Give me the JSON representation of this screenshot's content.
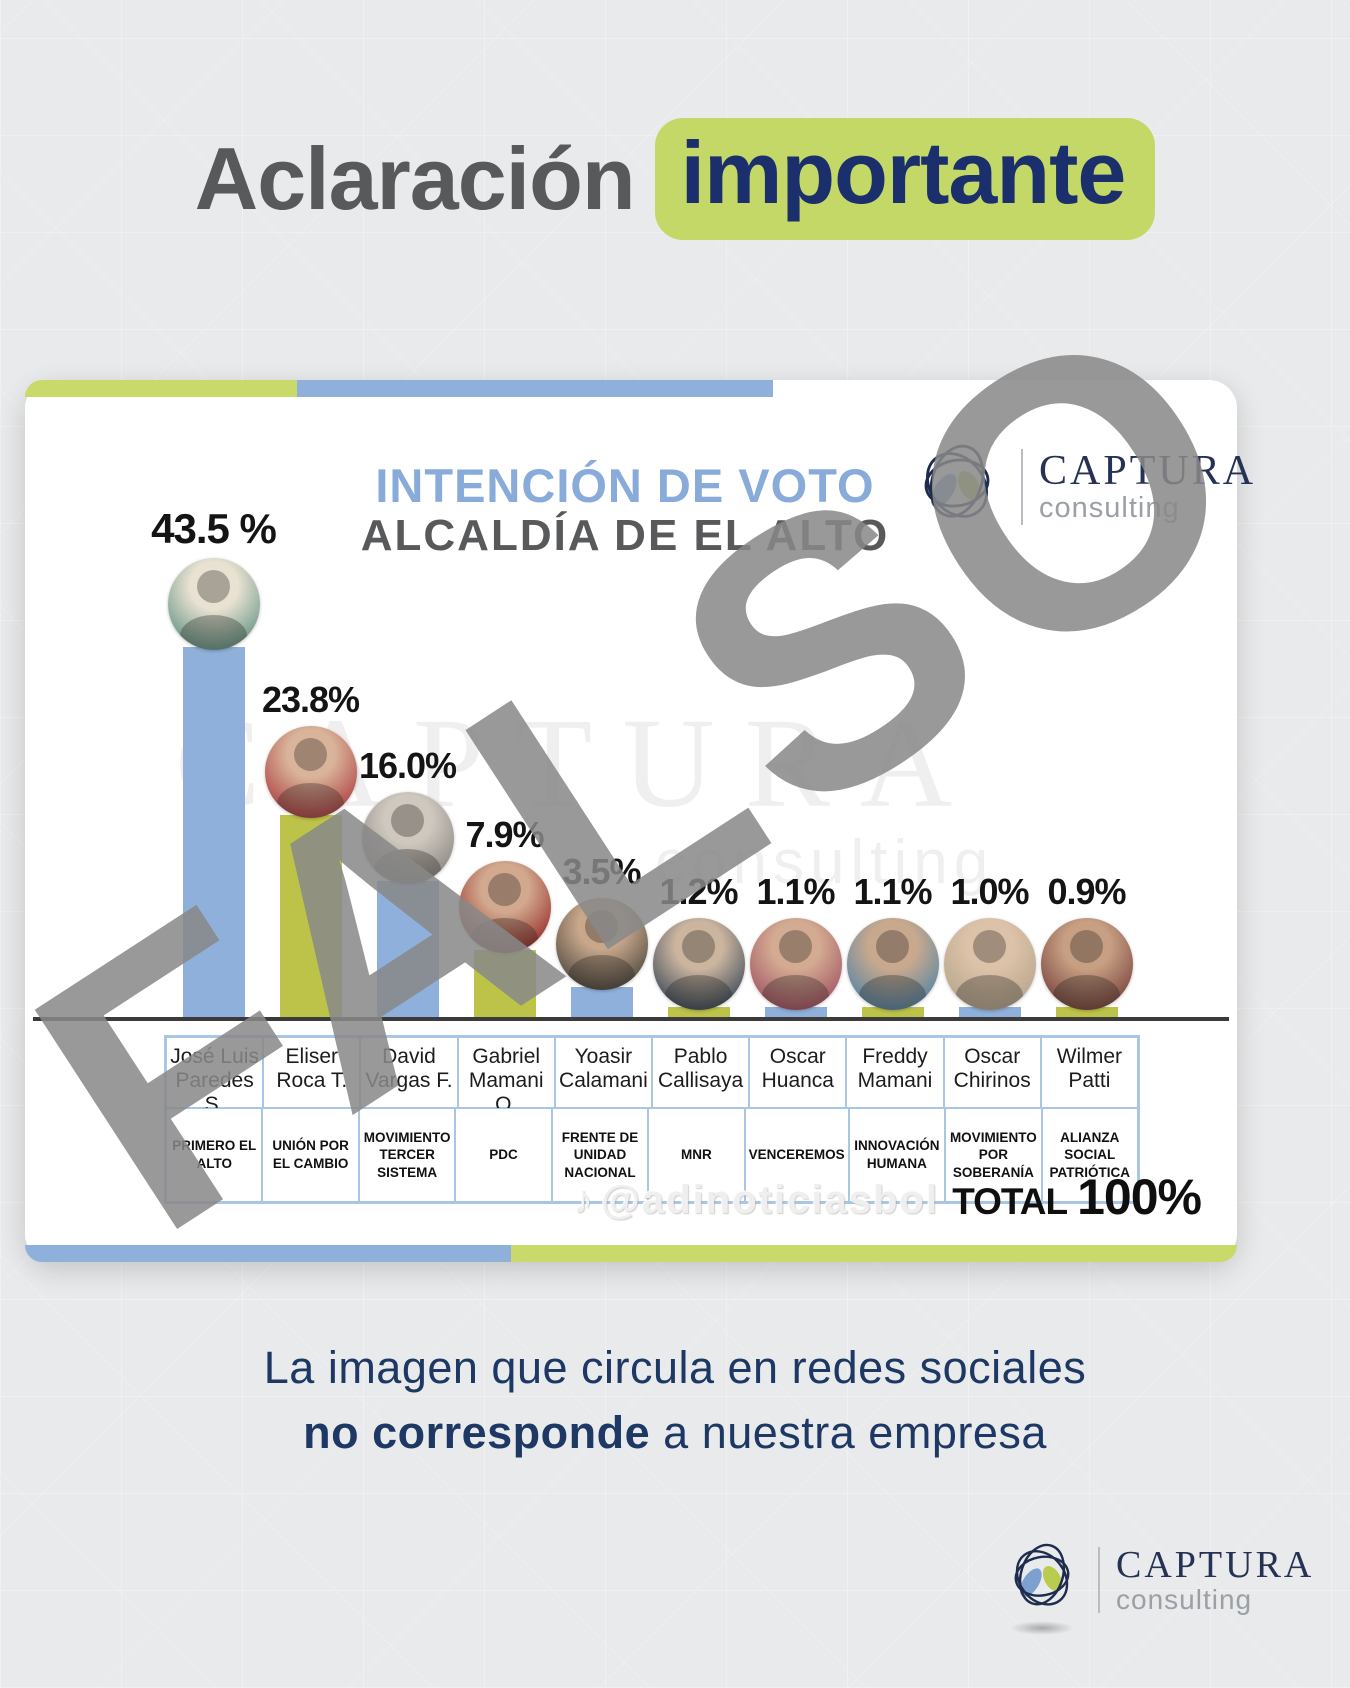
{
  "header": {
    "title_normal": "Aclaración",
    "title_highlight": "importante"
  },
  "chart_data": {
    "type": "bar",
    "title_line1": "INTENCIÓN DE VOTO",
    "title_line2": "ALCALDÍA DE EL ALTO",
    "categories": [
      "José Luis Paredes S.",
      "Eliser Roca T.",
      "David Vargas F.",
      "Gabriel Mamani O.",
      "Yoasir Calamani",
      "Pablo Callisaya",
      "Oscar Huanca",
      "Freddy Mamani",
      "Oscar Chirinos",
      "Wilmer Patti"
    ],
    "parties": [
      "PRIMERO EL ALTO",
      "UNIÓN POR EL CAMBIO",
      "MOVIMIENTO TERCER SISTEMA",
      "PDC",
      "FRENTE DE UNIDAD NACIONAL",
      "MNR",
      "VENCEREMOS",
      "INNOVACIÓN HUMANA",
      "MOVIMIENTO POR SOBERANÍA",
      "ALIANZA SOCIAL PATRIÓTICA"
    ],
    "values": [
      43.5,
      23.8,
      16.0,
      7.9,
      3.5,
      1.2,
      1.1,
      1.1,
      1.0,
      0.9
    ],
    "value_labels": [
      "43.5 %",
      "23.8%",
      "16.0%",
      "7.9%",
      "3.5%",
      "1.2%",
      "1.1%",
      "1.1%",
      "1.0%",
      "0.9%"
    ],
    "ylim": [
      0,
      45
    ],
    "grid": false,
    "legend": "none",
    "total_label": "TOTAL",
    "total_value": "100%",
    "social_handle": "@adinoticiasbol",
    "background_watermark": "CAPTURA",
    "background_watermark_sub": "consulting",
    "avatar_colors": [
      {
        "inner": "#e9e2d2",
        "outer": "#6f9a8a"
      },
      {
        "inner": "#d9b49a",
        "outer": "#b04848"
      },
      {
        "inner": "#cfc8bf",
        "outer": "#8e8a84"
      },
      {
        "inner": "#d2a98f",
        "outer": "#99342f"
      },
      {
        "inner": "#c8a78b",
        "outer": "#585045"
      },
      {
        "inner": "#cbb59f",
        "outer": "#47525e"
      },
      {
        "inner": "#d3ab92",
        "outer": "#a65a66"
      },
      {
        "inner": "#c9a98e",
        "outer": "#5d87a2"
      },
      {
        "inner": "#dcc2a8",
        "outer": "#b8a88f"
      },
      {
        "inner": "#c79f83",
        "outer": "#7e4a42"
      }
    ]
  },
  "fake_watermark": "FALSO",
  "brand": {
    "name": "CAPTURA",
    "subtitle": "consulting"
  },
  "message": {
    "line1": "La imagen que circula en redes sociales",
    "line2_bold": "no corresponde",
    "line2_rest": " a nuestra empresa"
  },
  "colors": {
    "bar_blue": "#8fb0da",
    "bar_olive": "#bcc348",
    "strip_green": "#c9d96a",
    "pill_green": "#c3d867",
    "navy": "#1c2f6d",
    "title_gray": "#58595a",
    "chart_title_blue": "#88abd9"
  }
}
